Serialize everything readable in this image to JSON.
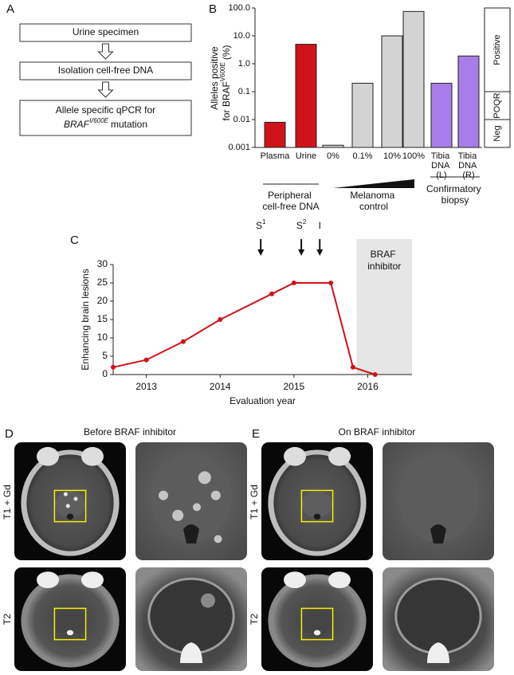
{
  "panel_labels": [
    "A",
    "B",
    "C",
    "D",
    "E"
  ],
  "flowchart": {
    "steps": [
      "Urine specimen",
      "Isolation cell-free DNA"
    ],
    "final_step": {
      "line1": "Allele specific qPCR for",
      "gene": "BRAF",
      "variant": "V600E",
      "suffix": "mutation"
    }
  },
  "chart_data": [
    {
      "type": "bar",
      "ylabel": {
        "line1": "Alleles positive",
        "line2": "for BRAF",
        "sup": "V600E",
        "line2_end": "(%)"
      },
      "categories": [
        "Plasma",
        "Urine",
        "0%",
        "0.1%",
        "10%",
        "100%",
        "Tibia DNA (L)",
        "Tibia DNA (R)"
      ],
      "values": [
        0.008,
        5,
        0.0012,
        0.2,
        10,
        75,
        0.2,
        1.9
      ],
      "colors": [
        "#d0121b",
        "#d0121b",
        "#d3d3d3",
        "#d3d3d3",
        "#d3d3d3",
        "#d3d3d3",
        "#a97de8",
        "#a97de8"
      ],
      "log_scale": true,
      "ylim": [
        0.001,
        100
      ],
      "yticks": [
        0.001,
        0.01,
        0.1,
        {
          "value": 1,
          "label": "1.0"
        },
        {
          "value": 10,
          "label": "10.0"
        },
        {
          "value": 100,
          "label": "100.0"
        }
      ],
      "groups": [
        "Peripheral cell-free DNA",
        "Melanoma control",
        "Confirmatory biopsy"
      ],
      "bands": [
        {
          "label": "Positive",
          "from": 0.1,
          "to": 100
        },
        {
          "label": "POQR",
          "from": 0.01,
          "to": 0.1
        },
        {
          "label": "Neg",
          "from": 0.001,
          "to": 0.01
        }
      ]
    },
    {
      "type": "line",
      "xlabel": "Evaluation year",
      "ylabel": "Enhancing brain lesions",
      "x": [
        2012.55,
        2013,
        2013.5,
        2014,
        2014.7,
        2015,
        2015.5,
        2015.8,
        2016.1
      ],
      "values": [
        2,
        4,
        9,
        15,
        22,
        25,
        25,
        2,
        0
      ],
      "color": "#d0121b",
      "xlim": [
        2012.55,
        2016.6
      ],
      "xticks": [
        2013,
        2014,
        2015,
        2016
      ],
      "ylim": [
        0,
        30
      ],
      "yticks": [
        0,
        5,
        10,
        15,
        20,
        25,
        30
      ],
      "shaded": {
        "label": "BRAF inhibitor",
        "from": 2015.85,
        "color": "#e6e6e6"
      },
      "annotations": [
        {
          "label": "S",
          "sup": "1",
          "x": 2014.55
        },
        {
          "label": "S",
          "sup": "2",
          "x": 2015.1
        },
        {
          "label": "I",
          "x": 2015.35
        }
      ]
    }
  ],
  "mri": [
    {
      "title": "Before BRAF inhibitor",
      "rows": [
        "T1 + Gd",
        "T2"
      ]
    },
    {
      "title": "On BRAF inhibitor",
      "rows": [
        "T1 + Gd",
        "T2"
      ]
    }
  ]
}
